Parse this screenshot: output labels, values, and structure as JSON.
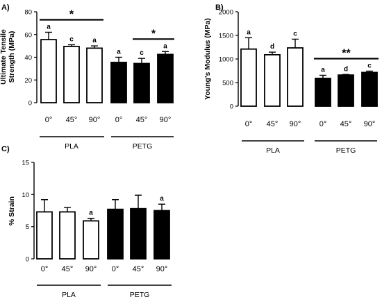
{
  "chart_data": [
    {
      "panel_label": "A)",
      "type": "bar",
      "ylabel": [
        "Ultimate Tensile",
        "Strength (MPa)"
      ],
      "ylim": [
        0,
        80
      ],
      "yticks": [
        0,
        20,
        40,
        60,
        80
      ],
      "groups": [
        "PLA",
        "PETG"
      ],
      "categories": [
        "0°",
        "45°",
        "90°",
        "0°",
        "45°",
        "90°"
      ],
      "fills": [
        "#ffffff",
        "#ffffff",
        "#ffffff",
        "#000000",
        "#000000",
        "#000000"
      ],
      "values": [
        55.5,
        49.5,
        48,
        35.5,
        34.5,
        42.5
      ],
      "errors": [
        6.5,
        1.5,
        2,
        4.5,
        4.5,
        2.5
      ],
      "letters": [
        "a",
        "c",
        "a",
        "a",
        "c",
        "a"
      ],
      "significance": [
        {
          "from": 0,
          "to": 2,
          "label": "*"
        },
        {
          "from": 4,
          "to": 5,
          "label": "*"
        }
      ]
    },
    {
      "panel_label": "B)",
      "type": "bar",
      "ylabel": [
        "Young's Modulus (MPa)"
      ],
      "ylim": [
        0,
        2000
      ],
      "yticks": [
        0,
        500,
        1000,
        1500,
        2000
      ],
      "groups": [
        "PLA",
        "PETG"
      ],
      "categories": [
        "0°",
        "45°",
        "90°",
        "0°",
        "45°",
        "90°"
      ],
      "fills": [
        "#ffffff",
        "#ffffff",
        "#ffffff",
        "#000000",
        "#000000",
        "#000000"
      ],
      "values": [
        1210,
        1090,
        1235,
        590,
        660,
        715
      ],
      "errors": [
        240,
        55,
        185,
        65,
        12,
        28
      ],
      "letters": [
        "a",
        "d",
        "c",
        "a",
        "d",
        "c"
      ],
      "significance": [
        {
          "from": 3,
          "to": 5,
          "label": "**"
        }
      ]
    },
    {
      "panel_label": "C)",
      "type": "bar",
      "ylabel": [
        "% Strain"
      ],
      "ylim": [
        0,
        15
      ],
      "yticks": [
        0,
        5,
        10,
        15
      ],
      "groups": [
        "PLA",
        "PETG"
      ],
      "categories": [
        "0°",
        "45°",
        "90°",
        "0°",
        "45°",
        "90°"
      ],
      "fills": [
        "#ffffff",
        "#ffffff",
        "#ffffff",
        "#000000",
        "#000000",
        "#000000"
      ],
      "values": [
        7.3,
        7.3,
        5.9,
        7.7,
        7.8,
        7.5
      ],
      "errors": [
        1.9,
        0.7,
        0.4,
        1.5,
        2.1,
        1.0
      ],
      "letters": [
        "",
        "",
        "a",
        "",
        "",
        "a"
      ],
      "significance": []
    }
  ]
}
